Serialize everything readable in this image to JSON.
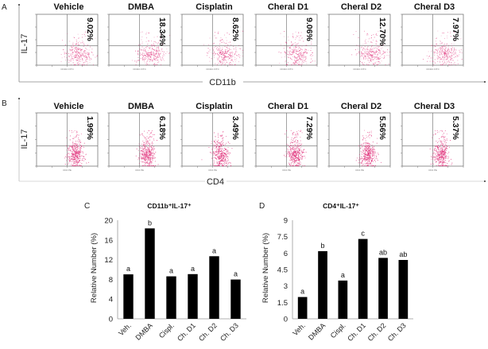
{
  "panels": {
    "A": {
      "letter": "A",
      "y_axis_label": "IL-17",
      "x_axis_label": "CD11b",
      "plots": [
        {
          "title": "Vehicle",
          "percent": "9.02%"
        },
        {
          "title": "DMBA",
          "percent": "18.34%"
        },
        {
          "title": "Cisplatin",
          "percent": "8.62%"
        },
        {
          "title": "Cheral D1",
          "percent": "9.06%"
        },
        {
          "title": "Cheral D2",
          "percent": "12.70%"
        },
        {
          "title": "Cheral D3",
          "percent": "7.97%"
        }
      ]
    },
    "B": {
      "letter": "B",
      "y_axis_label": "IL-17",
      "x_axis_label": "CD4",
      "plots": [
        {
          "title": "Vehicle",
          "percent": "1.99%"
        },
        {
          "title": "DMBA",
          "percent": "6.18%"
        },
        {
          "title": "Cisplatin",
          "percent": "3.49%"
        },
        {
          "title": "Cheral D1",
          "percent": "7.29%"
        },
        {
          "title": "Cheral D2",
          "percent": "5.56%"
        },
        {
          "title": "Cheral D3",
          "percent": "5.37%"
        }
      ]
    }
  },
  "colors": {
    "dots": "#e0307a",
    "bars": "#000000",
    "axis": "#999999"
  },
  "chart_data": [
    {
      "panel": "C",
      "type": "bar",
      "title": "CD11b⁺IL-17⁺",
      "xlabel": "",
      "ylabel": "Relative Number (%)",
      "categories": [
        "Veh.",
        "DMBA",
        "Cispl.",
        "Ch. D1",
        "Ch. D2",
        "Ch. D3"
      ],
      "values": [
        9.02,
        18.34,
        8.62,
        9.06,
        12.7,
        7.97
      ],
      "significance": [
        "a",
        "b",
        "a",
        "a",
        "a",
        "a"
      ],
      "ylim": [
        0,
        20
      ],
      "yticks": [
        0,
        4,
        8,
        12,
        16,
        20
      ],
      "grid": false
    },
    {
      "panel": "D",
      "type": "bar",
      "title": "CD4⁺IL-17⁺",
      "xlabel": "",
      "ylabel": "Relative Number (%)",
      "categories": [
        "Veh.",
        "DMBA",
        "Cispl.",
        "Ch. D1",
        "Ch. D2",
        "Ch. D3"
      ],
      "values": [
        1.99,
        6.18,
        3.49,
        7.29,
        5.56,
        5.37
      ],
      "significance": [
        "a",
        "b",
        "a",
        "c",
        "ab",
        "ab"
      ],
      "ylim": [
        0,
        9
      ],
      "yticks": [
        "0",
        "1.5",
        "3",
        "4.5",
        "6",
        "7.5",
        "9"
      ],
      "grid": false
    }
  ]
}
